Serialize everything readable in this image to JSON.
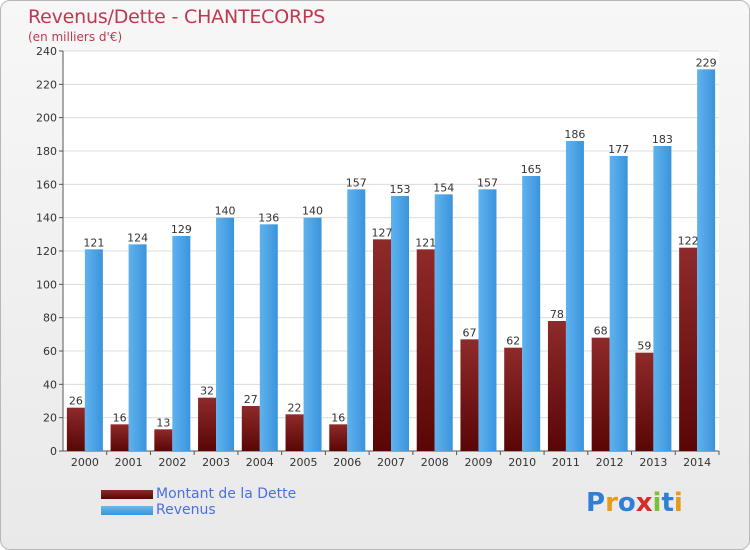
{
  "chart_data": {
    "type": "bar",
    "title": "Revenus/Dette - CHANTECORPS",
    "subtitle": "(en milliers d'€)",
    "categories": [
      "2000",
      "2001",
      "2002",
      "2003",
      "2004",
      "2005",
      "2006",
      "2007",
      "2008",
      "2009",
      "2010",
      "2011",
      "2012",
      "2013",
      "2014"
    ],
    "series": [
      {
        "name": "Montant de la Dette",
        "color": "#7a1a1a",
        "values": [
          26,
          16,
          13,
          32,
          27,
          22,
          16,
          127,
          121,
          67,
          62,
          78,
          68,
          59,
          122
        ]
      },
      {
        "name": "Revenus",
        "color": "#4aa3e8",
        "values": [
          121,
          124,
          129,
          140,
          136,
          140,
          157,
          153,
          154,
          157,
          165,
          186,
          177,
          183,
          229
        ]
      }
    ],
    "ylim": [
      0,
      240
    ],
    "yticks": [
      0,
      20,
      40,
      60,
      80,
      100,
      120,
      140,
      160,
      180,
      200,
      220,
      240
    ],
    "grid": true,
    "legend": "bottom-left"
  },
  "logo": {
    "letters": [
      "P",
      "r",
      "o",
      "x",
      "i",
      "t",
      "i"
    ],
    "colors": [
      "#2f7fd6",
      "#e89a1a",
      "#2f7fd6",
      "#d92a2a",
      "#7bbf3a",
      "#2f7fd6",
      "#e89a1a"
    ]
  }
}
